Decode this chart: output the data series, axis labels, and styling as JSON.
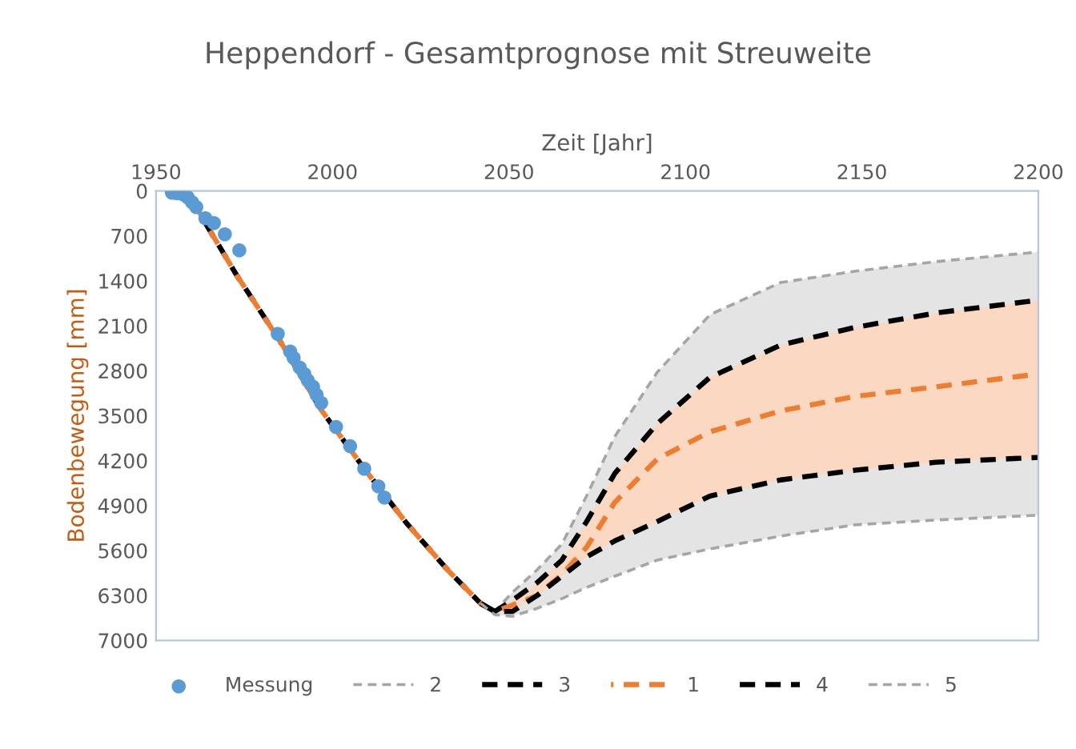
{
  "chart_data": {
    "type": "line",
    "title": "Heppendorf - Gesamtprognose mit Streuweite",
    "xlabel": "Zeit [Jahr]",
    "ylabel": "Bodenbewegung [mm]",
    "xlim": [
      1950,
      2200
    ],
    "xticks": [
      1950,
      2000,
      2050,
      2100,
      2150,
      2200
    ],
    "ylim": [
      7000,
      0
    ],
    "yticks": [
      0,
      700,
      1400,
      2100,
      2800,
      3500,
      4200,
      4900,
      5600,
      6300,
      7000
    ],
    "grid": false,
    "legend": "bottom",
    "line_style": "dashed",
    "x": [
      1960,
      1964,
      1973,
      1985,
      1997,
      2009,
      2021,
      2033,
      2042,
      2046,
      2051,
      2058,
      2065,
      2072,
      2080,
      2092,
      2107,
      2127,
      2148,
      2171,
      2200
    ],
    "series": [
      {
        "type": "scatter",
        "name": "Messung",
        "color": "#5b9bd5",
        "marker": "circle",
        "x": [
          1954.5,
          1956,
          1957.6,
          1959,
          1960.2,
          1961.4,
          1964,
          1966.4,
          1969.5,
          1973.6,
          1984.5,
          1988,
          1989,
          1990.7,
          1992,
          1993,
          1994.5,
          1995.5,
          1996.8,
          2001,
          2005,
          2009,
          2013,
          2014.7
        ],
        "values": [
          25,
          35,
          50,
          100,
          175,
          250,
          425,
          500,
          675,
          925,
          2225,
          2500,
          2600,
          2750,
          2850,
          2950,
          3050,
          3175,
          3300,
          3675,
          3975,
          4325,
          4600,
          4775
        ]
      },
      {
        "name": "2",
        "color": "#a5a5a5",
        "values": [
          null,
          null,
          null,
          null,
          null,
          null,
          null,
          null,
          6425,
          6550,
          6250,
          5900,
          5500,
          4750,
          3825,
          2825,
          1925,
          1425,
          1250,
          1100,
          950
        ],
        "lower": [
          null,
          null,
          null,
          null,
          null,
          null,
          null,
          null,
          6425,
          6600,
          6625,
          6500,
          6350,
          6175,
          6000,
          5750,
          5575,
          5375,
          5200,
          5125,
          5050
        ],
        "upper": [
          null,
          null,
          null,
          null,
          null,
          null,
          null,
          null,
          6425,
          6550,
          6250,
          5900,
          5500,
          4750,
          3825,
          2825,
          1925,
          1425,
          1250,
          1100,
          950
        ]
      },
      {
        "name": "3",
        "color": "#000000",
        "values": [
          null,
          500,
          1325,
          2325,
          3425,
          4325,
          5175,
          5925,
          6425,
          6550,
          6375,
          6100,
          5750,
          5150,
          4400,
          3625,
          2900,
          2400,
          2125,
          1900,
          1700
        ]
      },
      {
        "name": "1",
        "color": "#ed7d31",
        "values": [
          100,
          500,
          1325,
          2325,
          3425,
          4325,
          5175,
          5925,
          6425,
          6550,
          6450,
          6300,
          5975,
          5550,
          4850,
          4175,
          3750,
          3425,
          3200,
          3050,
          2850
        ],
        "lower": [
          null,
          null,
          null,
          null,
          null,
          null,
          null,
          null,
          6425,
          6550,
          6550,
          6300,
          6000,
          5700,
          5450,
          5150,
          4750,
          4500,
          4350,
          4225,
          4150
        ],
        "upper": [
          null,
          null,
          null,
          null,
          null,
          null,
          null,
          null,
          6425,
          6550,
          6375,
          6100,
          5750,
          5150,
          4400,
          3625,
          2900,
          2400,
          2125,
          1900,
          1700
        ]
      },
      {
        "name": "4",
        "color": "#000000",
        "values": [
          null,
          null,
          null,
          null,
          null,
          null,
          null,
          null,
          6425,
          6550,
          6550,
          6300,
          6000,
          5700,
          5450,
          5150,
          4750,
          4500,
          4350,
          4225,
          4150
        ]
      },
      {
        "name": "5",
        "color": "#a5a5a5",
        "values": [
          null,
          null,
          null,
          null,
          null,
          null,
          null,
          null,
          6425,
          6600,
          6625,
          6500,
          6350,
          6175,
          6000,
          5750,
          5575,
          5375,
          5200,
          5125,
          5050
        ]
      }
    ]
  }
}
